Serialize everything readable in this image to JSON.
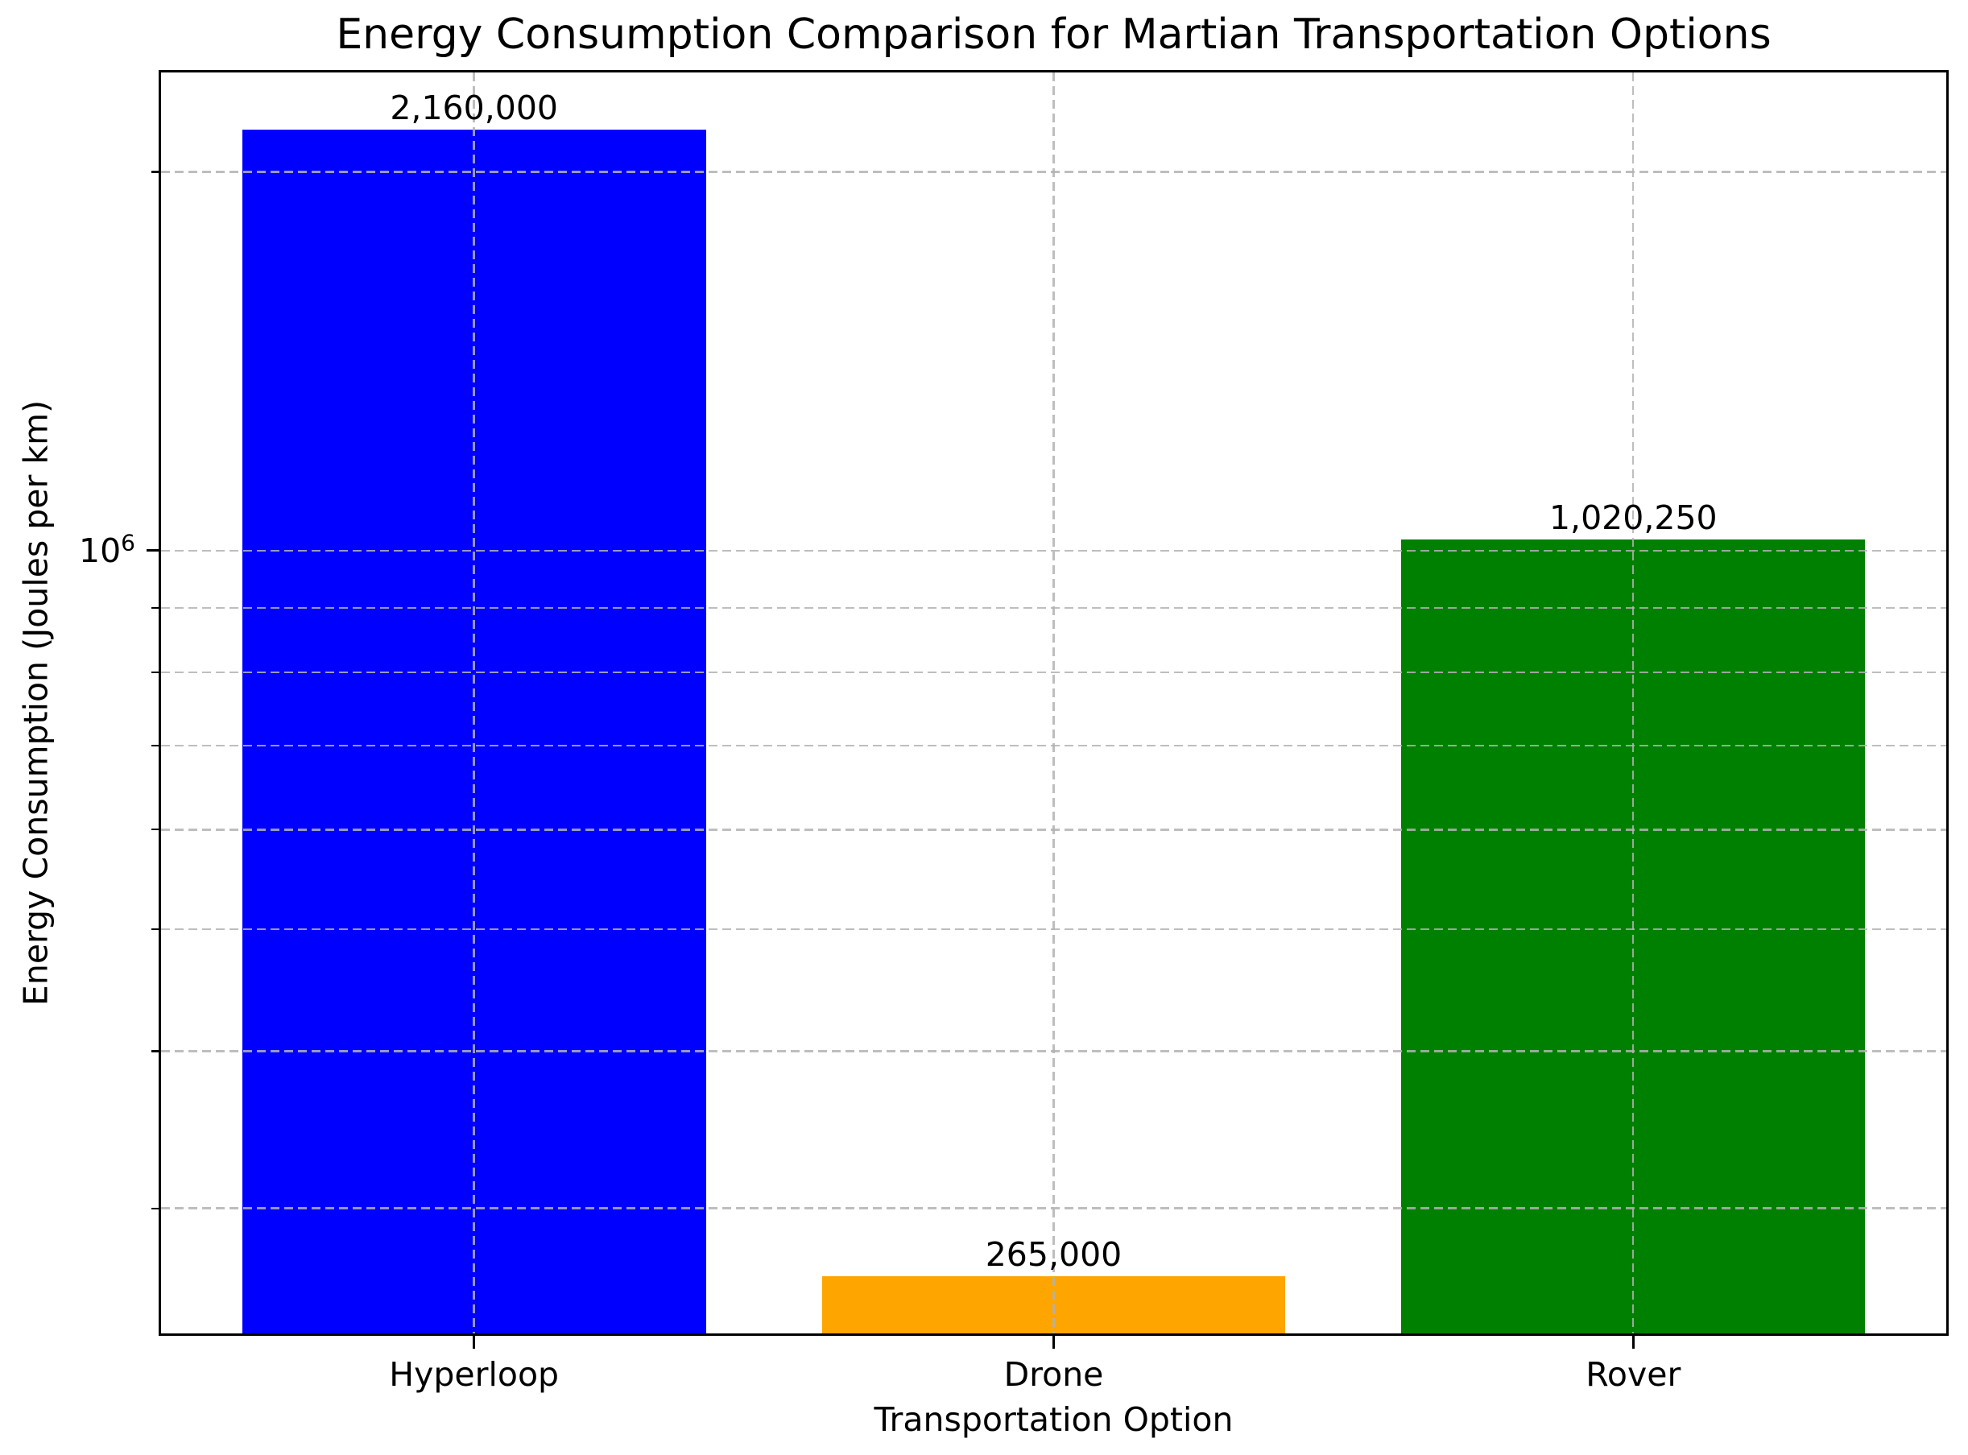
{
  "figure": {
    "background": "#ffffff"
  },
  "chart_data": {
    "type": "bar",
    "title": "Energy Consumption Comparison for Martian Transportation Options",
    "xlabel": "Transportation Option",
    "ylabel": "Energy Consumption (Joules per km)",
    "categories": [
      "Hyperloop",
      "Drone",
      "Rover"
    ],
    "values": [
      2160000,
      265000,
      1020250
    ],
    "value_labels": [
      "2,160,000",
      "265,000",
      "1,020,250"
    ],
    "bar_colors": [
      "#0000ff",
      "#ffa500",
      "#008000"
    ],
    "yscale": "log",
    "ylim": [
      238600,
      2399000
    ],
    "xlim": [
      -0.54,
      2.54
    ],
    "bar_width_fraction": 0.8,
    "ytick_major": {
      "value": 1000000,
      "label_base": "10",
      "label_exponent": "6"
    },
    "yticks_minor": [
      300000,
      400000,
      500000,
      600000,
      700000,
      800000,
      900000,
      2000000
    ],
    "grid": {
      "visible": true,
      "linestyle": "dashed",
      "color": "#b0b0b0"
    },
    "legend": null
  }
}
